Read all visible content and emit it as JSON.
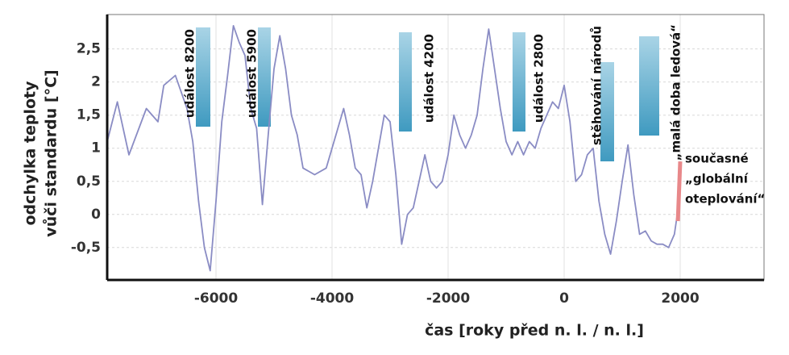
{
  "chart_data": {
    "type": "line",
    "x_label": "čas [roky před n. l. / n. l.]",
    "y_label": [
      "odchylka teploty",
      "vůči standardu [°C]"
    ],
    "x": [
      -7875,
      -7700,
      -7500,
      -7200,
      -7000,
      -6900,
      -6700,
      -6500,
      -6400,
      -6300,
      -6200,
      -6100,
      -6000,
      -5900,
      -5800,
      -5700,
      -5600,
      -5500,
      -5400,
      -5300,
      -5200,
      -5100,
      -5000,
      -4900,
      -4800,
      -4700,
      -4600,
      -4500,
      -4300,
      -4100,
      -4000,
      -3900,
      -3800,
      -3700,
      -3600,
      -3500,
      -3400,
      -3300,
      -3200,
      -3100,
      -3000,
      -2900,
      -2800,
      -2700,
      -2600,
      -2500,
      -2400,
      -2300,
      -2200,
      -2100,
      -2000,
      -1900,
      -1800,
      -1700,
      -1600,
      -1500,
      -1400,
      -1300,
      -1200,
      -1100,
      -1000,
      -900,
      -800,
      -700,
      -600,
      -500,
      -400,
      -300,
      -200,
      -100,
      0,
      100,
      200,
      300,
      400,
      500,
      600,
      700,
      800,
      900,
      1000,
      1100,
      1200,
      1300,
      1400,
      1500,
      1600,
      1700,
      1800,
      1900,
      1950
    ],
    "series": [
      {
        "color": "#8a8cc4",
        "values": [
          1.1,
          1.7,
          0.9,
          1.6,
          1.4,
          1.95,
          2.1,
          1.6,
          1.1,
          0.2,
          -0.5,
          -0.85,
          0.2,
          1.4,
          2.1,
          2.85,
          2.6,
          2.4,
          1.6,
          1.3,
          0.15,
          1.2,
          2.2,
          2.7,
          2.2,
          1.5,
          1.2,
          0.7,
          0.6,
          0.7,
          1.0,
          1.3,
          1.6,
          1.2,
          0.7,
          0.6,
          0.1,
          0.5,
          1.0,
          1.5,
          1.4,
          0.6,
          -0.45,
          0.0,
          0.1,
          0.5,
          0.9,
          0.5,
          0.4,
          0.5,
          0.9,
          1.5,
          1.2,
          1.0,
          1.2,
          1.5,
          2.2,
          2.8,
          2.2,
          1.6,
          1.1,
          0.9,
          1.1,
          0.9,
          1.1,
          1.0,
          1.3,
          1.5,
          1.7,
          1.6,
          1.95,
          1.4,
          0.5,
          0.6,
          0.9,
          1.0,
          0.2,
          -0.3,
          -0.6,
          -0.1,
          0.5,
          1.05,
          0.3,
          -0.3,
          -0.25,
          -0.4,
          -0.45,
          -0.45,
          -0.5,
          -0.3,
          0.0
        ]
      },
      {
        "color": "#e8888a",
        "x": [
          1960,
          2000
        ],
        "values": [
          -0.1,
          0.8
        ]
      }
    ],
    "xlim": [
      -7875,
      3444
    ],
    "ylim": [
      -0.99,
      3.02
    ],
    "xticks": [
      -6000,
      -4000,
      -2000,
      0,
      2000
    ],
    "yticks": [
      {
        "value": -0.5,
        "label": "-0,5"
      },
      0,
      {
        "value": 0.5,
        "label": "0,5"
      },
      1,
      {
        "value": 1.5,
        "label": "1,5"
      },
      2,
      {
        "value": 2.5,
        "label": "2,5"
      }
    ],
    "grid": true,
    "annotations": [
      "událost 8200",
      "událost 5900",
      "událost 4200",
      "událost 2800",
      "stěhování národů",
      "„malá doba ledová“",
      [
        "současné",
        "„globální",
        "oteplování“"
      ]
    ]
  }
}
